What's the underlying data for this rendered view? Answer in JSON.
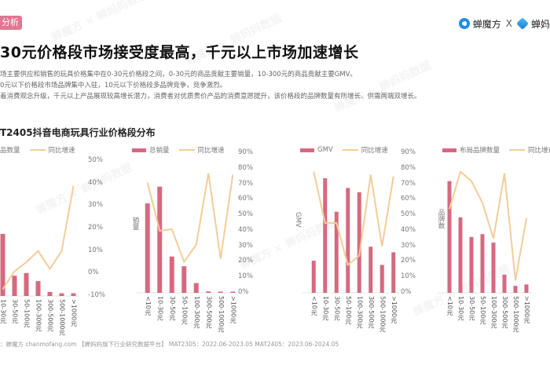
{
  "header": {
    "section_tag": "分析",
    "logos": [
      "蝉魔方",
      "X",
      "蝉妈"
    ],
    "title": "30元价格段市场接受度最高，千元以上市场加速增长"
  },
  "bullets": [
    "场主要供应和销售的玩具价格集中在0-30元价格段之间，0-30元的商品贡献主要销量，10-300元的商品贡献主要GMV。",
    "0元以下价格段市场品牌集中入驻，10元以下价格段多品牌竞争，竞争激烈。",
    "着消费观念升级，千元以上产品展现较高增长潜力，消费者对优质贵价产品的消费意愿提升，该价格段的品牌数量有所增长、供需两端双增长。"
  ],
  "section_title": "T2405抖音电商玩具行业价格段分布",
  "source": "：蝉魔方 chanmofang.com 【蝉妈妈旗下行业研究数据平台】 MAT2305：2022.06-2023.05 MAT2405：2023.06-2024.05",
  "colors": {
    "bar": "#d6697f",
    "line": "#f4cc99"
  },
  "chart_data": [
    {
      "type": "bar+line",
      "title": "商品数量",
      "legend": [
        "品数量",
        "同比增速"
      ],
      "ylabel": "",
      "categories": [
        "10-30元",
        "30-50元",
        "50-100元",
        "100-300元",
        "300-500元",
        "500-1000元",
        ">1000元"
      ],
      "bar_values": [
        0.46,
        0.15,
        0.17,
        0.11,
        0.03,
        0.02,
        0.02
      ],
      "line_values": [
        -7,
        1,
        5,
        10,
        2,
        10,
        39
      ],
      "right_ticks": [
        "50%",
        "40%",
        "30%",
        "20%",
        "10%",
        "0%",
        "-10%"
      ],
      "right_ylim": [
        -10,
        50
      ]
    },
    {
      "type": "bar+line",
      "title": "总销量",
      "legend": [
        "总销量",
        "同比增速"
      ],
      "ylabel": "销量",
      "categories": [
        "<10元",
        "10-30元",
        "30-50元",
        "50-100元",
        "100-300元",
        "300-500元",
        "500-1000元",
        ">1000元"
      ],
      "bar_values": [
        0.64,
        0.76,
        0.26,
        0.19,
        0.07,
        0.01,
        0.003,
        0.002
      ],
      "line_values": [
        71,
        40,
        41,
        20,
        31,
        77,
        22,
        76
      ],
      "right_ticks": [
        "90%",
        "80%",
        "70%",
        "60%",
        "50%",
        "40%",
        "30%",
        "20%",
        "10%",
        "0%"
      ],
      "right_ylim": [
        0,
        90
      ]
    },
    {
      "type": "bar+line",
      "title": "GMV",
      "legend": [
        "GMV",
        "同比增速"
      ],
      "ylabel": "GMV",
      "categories": [
        "<10元",
        "10-30元",
        "30-50元",
        "50-100元",
        "100-300元",
        "300-500元",
        "500-1000元",
        ">1000元"
      ],
      "bar_values": [
        0.23,
        0.82,
        0.58,
        0.75,
        0.72,
        0.33,
        0.2,
        0.29
      ],
      "line_values": [
        78,
        45,
        45,
        18,
        24,
        76,
        30,
        75
      ],
      "right_ticks": [
        "90%",
        "80%",
        "70%",
        "60%",
        "50%",
        "40%",
        "30%",
        "20%",
        "10%",
        "0%"
      ],
      "right_ylim": [
        0,
        90
      ]
    },
    {
      "type": "bar+line",
      "title": "布局品牌数量",
      "legend": [
        "布局品牌数量",
        "同比增速"
      ],
      "ylabel": "品牌数",
      "categories": [
        "<10元",
        "10-30元",
        "30-50元",
        "50-100元",
        "100-300元",
        "300-500元",
        "500-1000元",
        ">1000元"
      ],
      "bar_values": [
        0.8,
        0.54,
        0.4,
        0.42,
        0.36,
        0.13,
        0.05,
        0.06
      ],
      "line_values": [
        34,
        58,
        52,
        38,
        15,
        57,
        -12,
        28
      ],
      "right_ylim": [
        -20,
        70
      ]
    }
  ]
}
